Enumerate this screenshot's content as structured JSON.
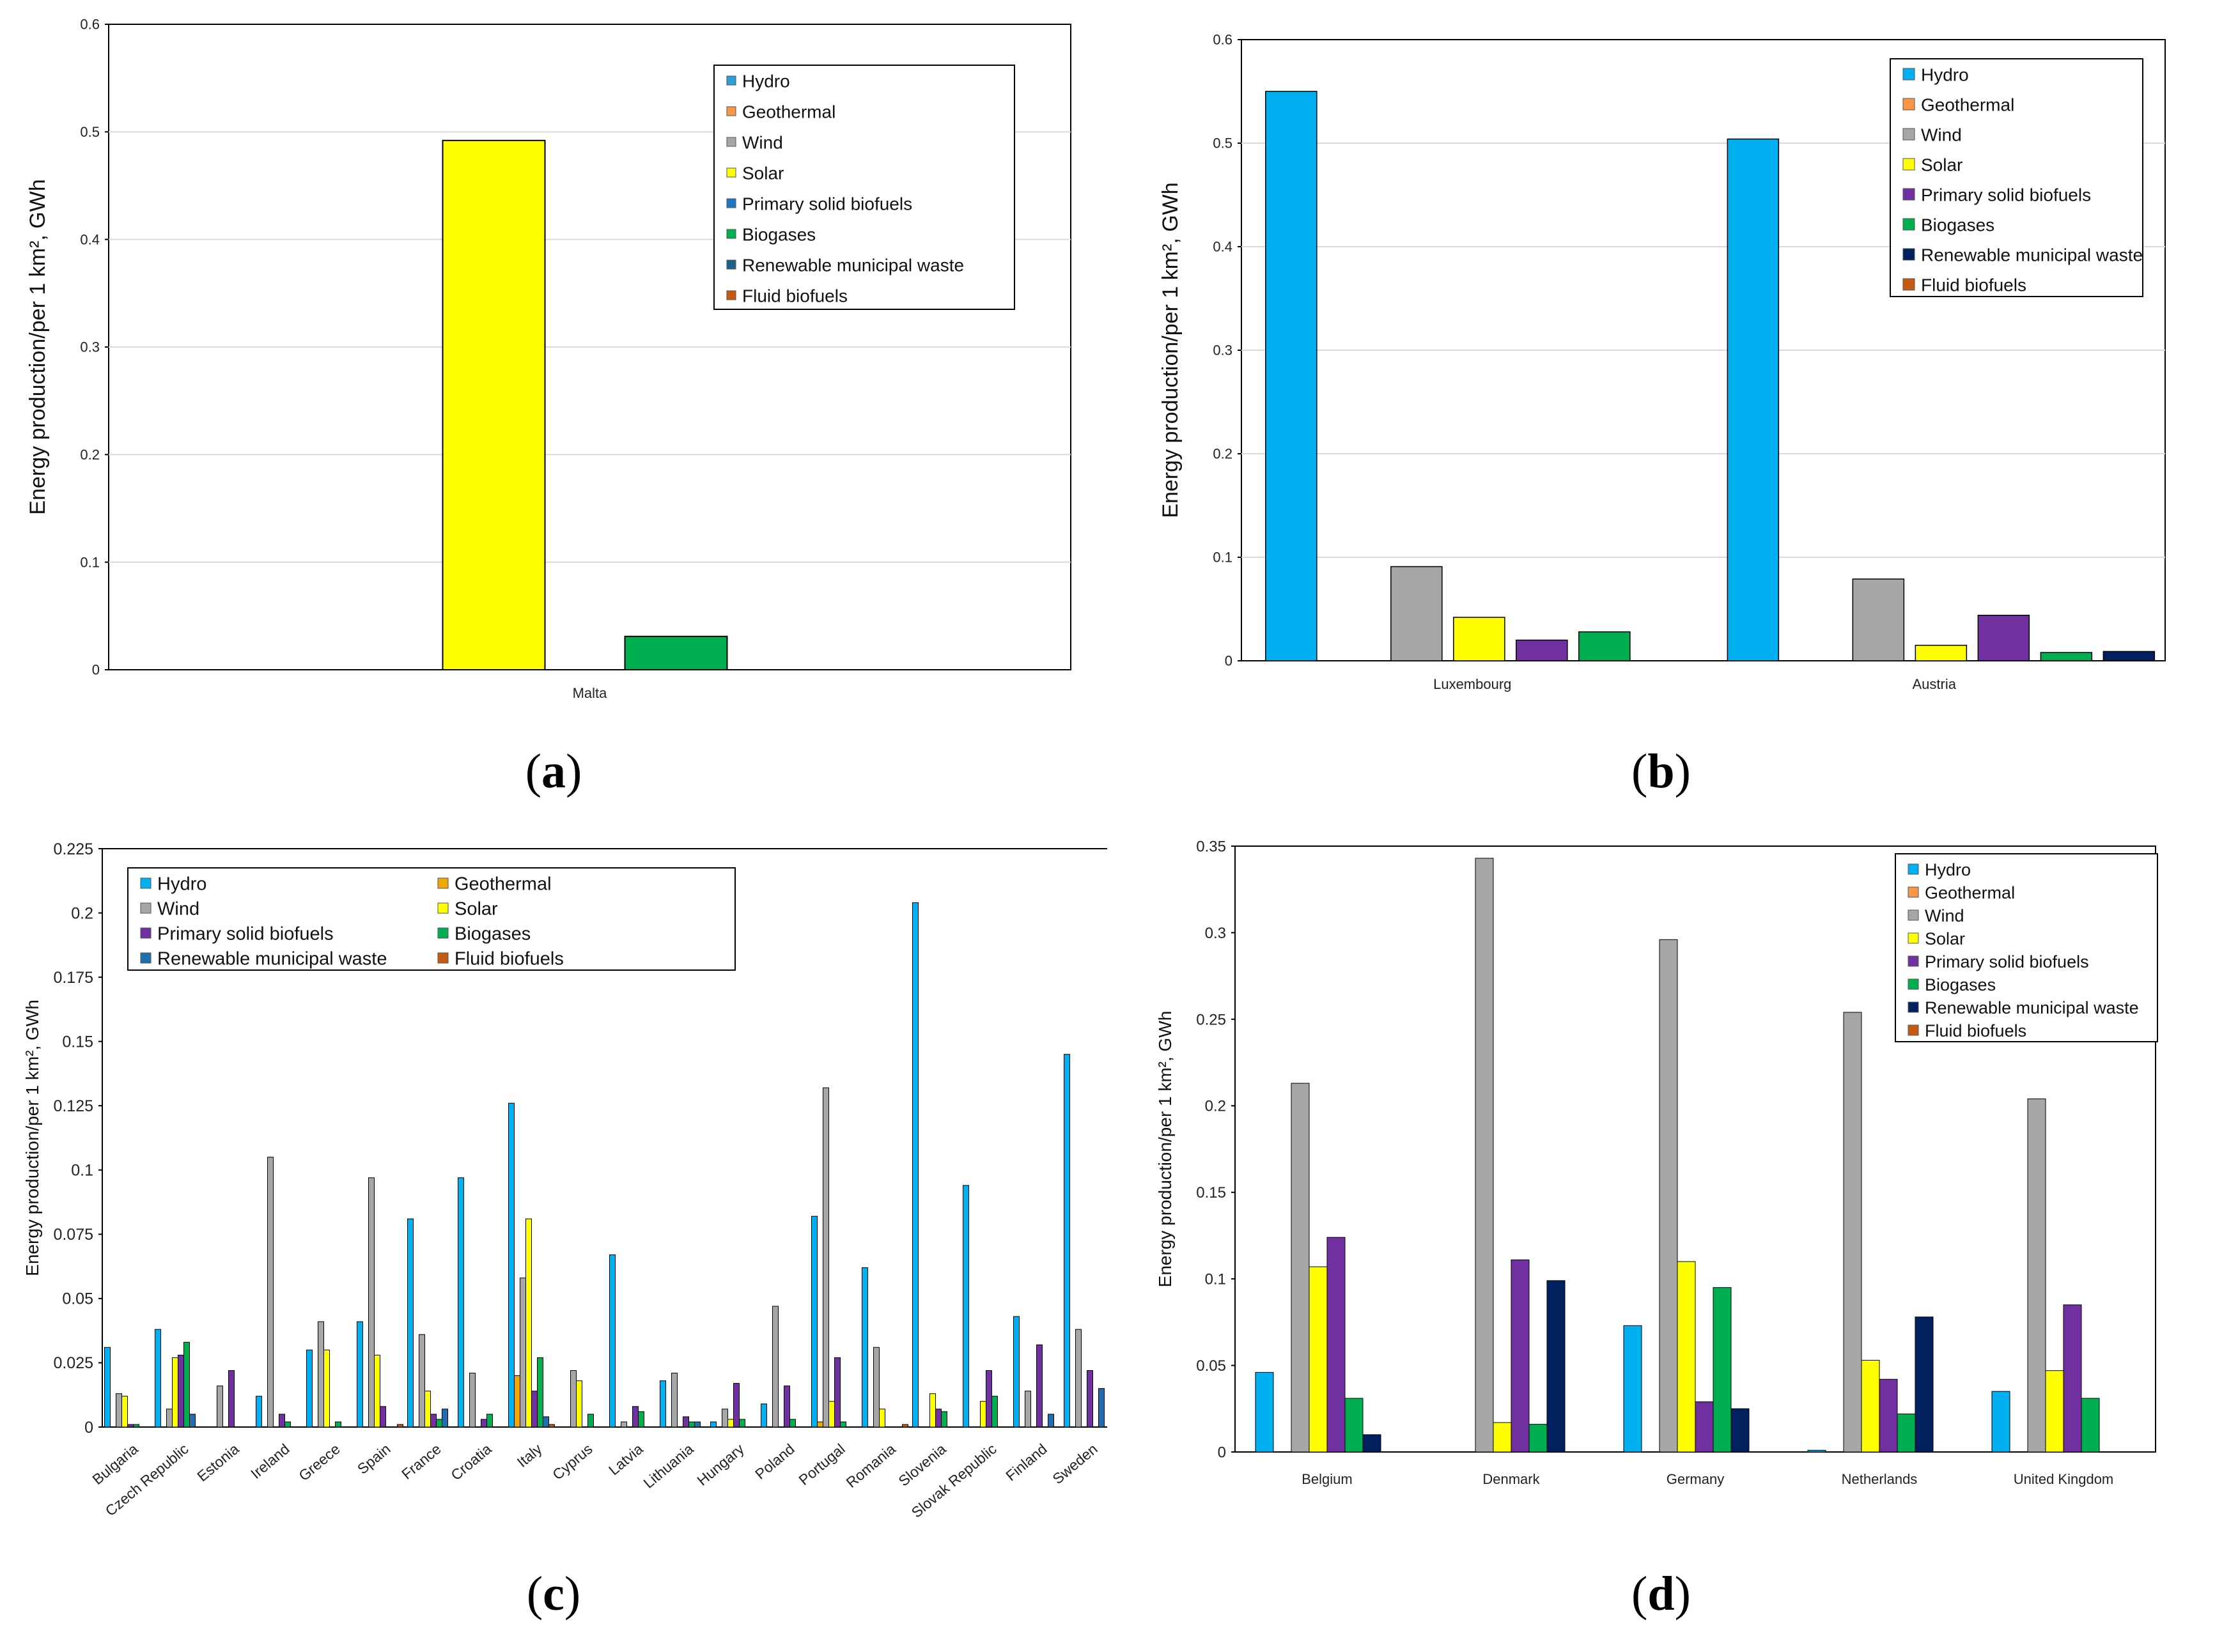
{
  "series_colors": {
    "Hydro": "#00b0f0",
    "Geothermal": "#f79646",
    "Wind": "#a6a6a6",
    "Solar": "#ffff00",
    "Primary solid biofuels": "#7030a0",
    "Biogases": "#00b050",
    "Renewable municipal waste": "#002060",
    "Fluid biofuels": "#c55a11"
  },
  "chart_data": [
    {
      "panel": "a",
      "caption": "a",
      "type": "bar",
      "ylabel": "Energy production/per 1 km², GWh",
      "ylim": [
        0,
        0.6
      ],
      "yticks": [
        "0",
        "0.1",
        "0.2",
        "0.3",
        "0.4",
        "0.5",
        "0.6"
      ],
      "grid": true,
      "legend_position": "top-right",
      "legend": [
        "Hydro",
        "Geothermal",
        "Wind",
        "Solar",
        "Primary solid biofuels",
        "Biogases",
        "Renewable municipal waste",
        "Fluid biofuels"
      ],
      "legend_colors": [
        "#2e9fd8",
        "#f79646",
        "#a6a6a6",
        "#ffff00",
        "#1f77c4",
        "#00b050",
        "#1f5f8b",
        "#c55a11"
      ],
      "categories": [
        "Malta"
      ],
      "series": [
        {
          "name": "Hydro",
          "values": [
            0
          ]
        },
        {
          "name": "Geothermal",
          "values": [
            0
          ]
        },
        {
          "name": "Wind",
          "values": [
            0
          ]
        },
        {
          "name": "Solar",
          "values": [
            0.492
          ]
        },
        {
          "name": "Primary solid biofuels",
          "values": [
            0
          ]
        },
        {
          "name": "Biogases",
          "values": [
            0.031
          ]
        },
        {
          "name": "Renewable municipal waste",
          "values": [
            0
          ]
        },
        {
          "name": "Fluid biofuels",
          "values": [
            0
          ]
        }
      ]
    },
    {
      "panel": "b",
      "caption": "b",
      "type": "bar",
      "ylabel": "Energy production/per 1 km², GWh",
      "ylim": [
        0,
        0.6
      ],
      "yticks": [
        "0",
        "0.1",
        "0.2",
        "0.3",
        "0.4",
        "0.5",
        "0.6"
      ],
      "grid": true,
      "legend_position": "top-right",
      "legend": [
        "Hydro",
        "Geothermal",
        "Wind",
        "Solar",
        "Primary solid biofuels",
        "Biogases",
        "Renewable municipal waste",
        "Fluid biofuels"
      ],
      "legend_colors": [
        "#00b0f0",
        "#f79646",
        "#a6a6a6",
        "#ffff00",
        "#7030a0",
        "#00b050",
        "#002060",
        "#c55a11"
      ],
      "categories": [
        "Luxembourg",
        "Austria"
      ],
      "series": [
        {
          "name": "Hydro",
          "values": [
            0.55,
            0.504
          ]
        },
        {
          "name": "Geothermal",
          "values": [
            0,
            0
          ]
        },
        {
          "name": "Wind",
          "values": [
            0.091,
            0.079
          ]
        },
        {
          "name": "Solar",
          "values": [
            0.042,
            0.015
          ]
        },
        {
          "name": "Primary solid biofuels",
          "values": [
            0.02,
            0.044
          ]
        },
        {
          "name": "Biogases",
          "values": [
            0.028,
            0.008
          ]
        },
        {
          "name": "Renewable municipal waste",
          "values": [
            0,
            0.009
          ]
        },
        {
          "name": "Fluid biofuels",
          "values": [
            0,
            0
          ]
        }
      ]
    },
    {
      "panel": "c",
      "caption": "c",
      "type": "bar",
      "ylabel": "Energy production/per 1 km², GWh",
      "ylim": [
        0,
        0.225
      ],
      "yticks": [
        "0",
        "0.025",
        "0.05",
        "0.075",
        "0.1",
        "0.125",
        "0.15",
        "0.175",
        "0.2",
        "0.225"
      ],
      "grid": false,
      "legend_position": "top-left",
      "legend": [
        "Hydro",
        "Geothermal",
        "Wind",
        "Solar",
        "Primary solid biofuels",
        "Biogases",
        "Renewable municipal waste",
        "Fluid biofuels"
      ],
      "legend_colors": [
        "#00b0f0",
        "#f0a800",
        "#a6a6a6",
        "#ffff00",
        "#7030a0",
        "#00b050",
        "#1f6fae",
        "#c55a11"
      ],
      "categories": [
        "Bulgaria",
        "Czech Republic",
        "Estonia",
        "Ireland",
        "Greece",
        "Spain",
        "France",
        "Croatia",
        "Italy",
        "Cyprus",
        "Latvia",
        "Lithuania",
        "Hungary",
        "Poland",
        "Portugal",
        "Romania",
        "Slovenia",
        "Slovak Republic",
        "Finland",
        "Sweden"
      ],
      "series": [
        {
          "name": "Hydro",
          "values": [
            0.031,
            0.038,
            0,
            0.012,
            0.03,
            0.041,
            0.081,
            0.097,
            0.126,
            0,
            0.067,
            0.018,
            0.002,
            0.009,
            0.082,
            0.062,
            0.204,
            0.094,
            0.043,
            0.145
          ]
        },
        {
          "name": "Geothermal",
          "values": [
            0,
            0,
            0,
            0,
            0,
            0,
            0,
            0,
            0.02,
            0,
            0,
            0,
            0,
            0,
            0.002,
            0,
            0,
            0,
            0,
            0
          ]
        },
        {
          "name": "Wind",
          "values": [
            0.013,
            0.007,
            0.016,
            0.105,
            0.041,
            0.097,
            0.036,
            0.021,
            0.058,
            0.022,
            0.002,
            0.021,
            0.007,
            0.047,
            0.132,
            0.031,
            0,
            0,
            0.014,
            0.038
          ]
        },
        {
          "name": "Solar",
          "values": [
            0.012,
            0.027,
            0,
            0,
            0.03,
            0.028,
            0.014,
            0,
            0.081,
            0.018,
            0,
            0,
            0.003,
            0,
            0.01,
            0.007,
            0.013,
            0.01,
            0,
            0
          ]
        },
        {
          "name": "Primary solid biofuels",
          "values": [
            0.001,
            0.028,
            0.022,
            0.005,
            0,
            0.008,
            0.005,
            0.003,
            0.014,
            0,
            0.008,
            0.004,
            0.017,
            0.016,
            0.027,
            0,
            0.007,
            0.022,
            0.032,
            0.022
          ]
        },
        {
          "name": "Biogases",
          "values": [
            0.001,
            0.033,
            0,
            0.002,
            0.002,
            0,
            0.003,
            0.005,
            0.027,
            0.005,
            0.006,
            0.002,
            0.003,
            0.003,
            0.002,
            0,
            0.006,
            0.012,
            0,
            0
          ]
        },
        {
          "name": "Renewable municipal waste",
          "values": [
            0,
            0.005,
            0,
            0,
            0,
            0,
            0.007,
            0,
            0.004,
            0,
            0,
            0.002,
            0,
            0,
            0,
            0,
            0,
            0,
            0.005,
            0.015
          ]
        },
        {
          "name": "Fluid biofuels",
          "values": [
            0,
            0,
            0,
            0,
            0,
            0.001,
            0,
            0,
            0.001,
            0,
            0,
            0,
            0,
            0,
            0,
            0.001,
            0,
            0,
            0,
            0
          ]
        }
      ]
    },
    {
      "panel": "d",
      "caption": "d",
      "type": "bar",
      "ylabel": "Energy production/per 1 km², GWh",
      "ylim": [
        0,
        0.35
      ],
      "yticks": [
        "0",
        "0.05",
        "0.1",
        "0.15",
        "0.2",
        "0.25",
        "0.3",
        "0.35"
      ],
      "grid": false,
      "legend_position": "top-right",
      "legend": [
        "Hydro",
        "Geothermal",
        "Wind",
        "Solar",
        "Primary solid biofuels",
        "Biogases",
        "Renewable municipal waste",
        "Fluid biofuels"
      ],
      "legend_colors": [
        "#00b0f0",
        "#f79646",
        "#a6a6a6",
        "#ffff00",
        "#7030a0",
        "#00b050",
        "#002060",
        "#c55a11"
      ],
      "categories": [
        "Belgium",
        "Denmark",
        "Germany",
        "Netherlands",
        "United Kingdom"
      ],
      "series": [
        {
          "name": "Hydro",
          "values": [
            0.046,
            0,
            0.073,
            0.001,
            0.035
          ]
        },
        {
          "name": "Geothermal",
          "values": [
            0,
            0,
            0,
            0,
            0
          ]
        },
        {
          "name": "Wind",
          "values": [
            0.213,
            0.343,
            0.296,
            0.254,
            0.204
          ]
        },
        {
          "name": "Solar",
          "values": [
            0.107,
            0.017,
            0.11,
            0.053,
            0.047
          ]
        },
        {
          "name": "Primary solid biofuels",
          "values": [
            0.124,
            0.111,
            0.029,
            0.042,
            0.085
          ]
        },
        {
          "name": "Biogases",
          "values": [
            0.031,
            0.016,
            0.095,
            0.022,
            0.031
          ]
        },
        {
          "name": "Renewable municipal waste",
          "values": [
            0.01,
            0.099,
            0.025,
            0.078,
            0
          ]
        },
        {
          "name": "Fluid biofuels",
          "values": [
            0,
            0,
            0,
            0,
            0
          ]
        }
      ]
    }
  ]
}
